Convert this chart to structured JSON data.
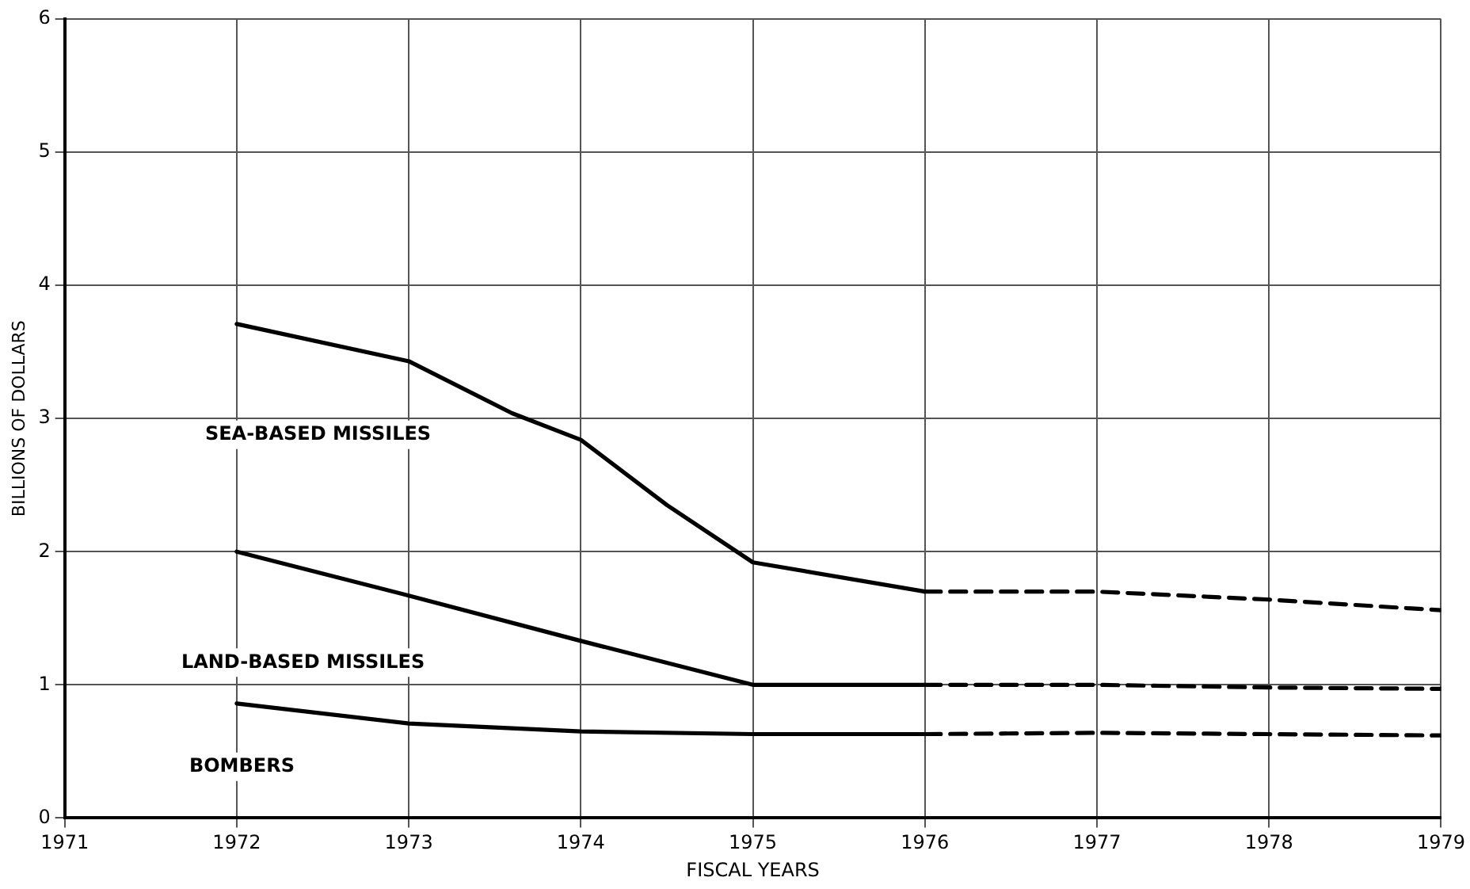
{
  "chart_data": {
    "type": "line",
    "xlabel": "FISCAL YEARS",
    "ylabel": "BILLIONS OF DOLLARS",
    "xlim": [
      1971,
      1979
    ],
    "xticks": [
      1971,
      1972,
      1973,
      1974,
      1975,
      1976,
      1977,
      1978,
      1979
    ],
    "ylim": [
      0,
      6
    ],
    "yticks": [
      0,
      1,
      2,
      3,
      4,
      5,
      6
    ],
    "grid": true,
    "legend": false,
    "marker": "none",
    "series": [
      {
        "name": "SEA-BASED MISSILES",
        "color": "#000000",
        "line_style": "solid",
        "x": [
          1972,
          1973,
          1973.6,
          1974,
          1974.5,
          1975,
          1976
        ],
        "values": [
          3.71,
          3.43,
          3.04,
          2.84,
          2.35,
          1.92,
          1.7
        ]
      },
      {
        "color": "#000000",
        "line_style": "dashed",
        "x": [
          1976,
          1977,
          1978,
          1979
        ],
        "values": [
          1.7,
          1.7,
          1.64,
          1.56
        ]
      },
      {
        "name": "LAND-BASED MISSILES",
        "color": "#000000",
        "line_style": "solid",
        "x": [
          1972,
          1973,
          1974,
          1975,
          1976
        ],
        "values": [
          2.0,
          1.67,
          1.33,
          1.0,
          1.0
        ]
      },
      {
        "color": "#000000",
        "line_style": "dashed",
        "x": [
          1976,
          1977,
          1978,
          1979
        ],
        "values": [
          1.0,
          1.0,
          0.98,
          0.97
        ]
      },
      {
        "name": "BOMBERS",
        "color": "#000000",
        "line_style": "solid",
        "x": [
          1972,
          1973,
          1974,
          1975,
          1976
        ],
        "values": [
          0.86,
          0.71,
          0.65,
          0.63,
          0.63
        ]
      },
      {
        "color": "#000000",
        "line_style": "dashed",
        "x": [
          1976,
          1977,
          1978,
          1979
        ],
        "values": [
          0.63,
          0.64,
          0.63,
          0.62
        ]
      }
    ]
  }
}
